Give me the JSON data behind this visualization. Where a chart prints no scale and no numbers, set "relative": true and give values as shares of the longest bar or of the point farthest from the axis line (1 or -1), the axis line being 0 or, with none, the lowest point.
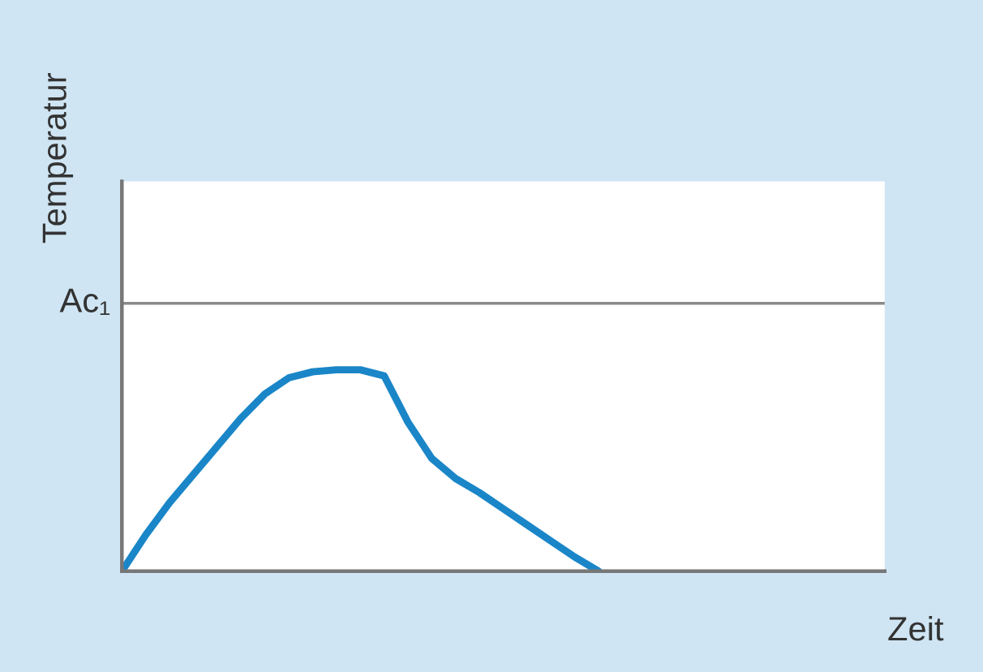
{
  "chart_data": {
    "type": "line",
    "relative": true,
    "xlabel": "Zeit",
    "ylabel": "Temperatur",
    "categories": [
      null,
      null,
      null,
      null,
      null,
      null,
      null,
      null,
      null,
      null,
      null,
      null,
      null,
      null,
      null,
      null,
      null,
      null,
      null,
      null,
      null,
      null,
      null,
      null,
      null,
      null,
      null,
      null,
      null,
      null,
      null,
      null,
      null
    ],
    "series": [
      {
        "color": "#1a86c8",
        "values": [
          0,
          0.18,
          0.34,
          0.48,
          0.62,
          0.76,
          0.88,
          0.96,
          0.99,
          1,
          1,
          0.97,
          0.74,
          0.56,
          0.46,
          0.39,
          0.31,
          0.23,
          0.15,
          0.07,
          0,
          null,
          null,
          null,
          null,
          null,
          null,
          null,
          null,
          null,
          null,
          null,
          null
        ]
      }
    ],
    "ref_lines": [
      {
        "axis": "y",
        "value": 1.33,
        "label": "Ac₁",
        "color": "#8a8a8a"
      }
    ],
    "legend": false,
    "marker": "none",
    "line_style": "solid"
  }
}
